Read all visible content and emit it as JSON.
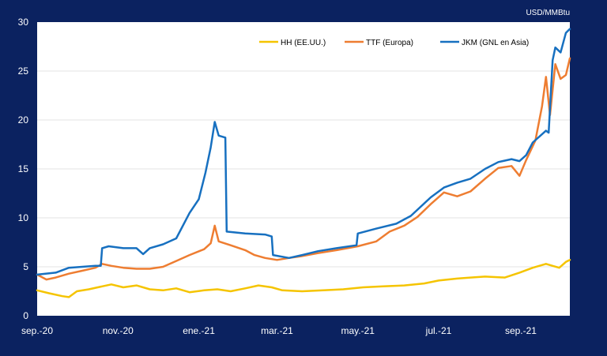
{
  "chart_data": {
    "type": "line",
    "unit_label": "USD/MMBtu",
    "xlabel": "",
    "ylabel": "",
    "ylim": [
      0,
      30
    ],
    "yticks": [
      0,
      5,
      10,
      15,
      20,
      25,
      30
    ],
    "xlim": [
      "2020-09-01",
      "2021-10-08"
    ],
    "xticks": [
      {
        "date": "2020-09-01",
        "label": "sep.-20"
      },
      {
        "date": "2020-11-01",
        "label": "nov.-20"
      },
      {
        "date": "2021-01-01",
        "label": "ene.-21"
      },
      {
        "date": "2021-03-01",
        "label": "mar.-21"
      },
      {
        "date": "2021-05-01",
        "label": "may.-21"
      },
      {
        "date": "2021-07-01",
        "label": "jul.-21"
      },
      {
        "date": "2021-09-01",
        "label": "sep.-21"
      }
    ],
    "grid": true,
    "legend_position": "top-right",
    "series": [
      {
        "name": "HH (EE.UU.)",
        "color": "#f5c400",
        "points": [
          [
            "2020-09-01",
            2.6
          ],
          [
            "2020-09-10",
            2.3
          ],
          [
            "2020-09-20",
            2.0
          ],
          [
            "2020-09-25",
            1.9
          ],
          [
            "2020-10-01",
            2.5
          ],
          [
            "2020-10-10",
            2.7
          ],
          [
            "2020-10-20",
            3.0
          ],
          [
            "2020-10-27",
            3.2
          ],
          [
            "2020-11-05",
            2.9
          ],
          [
            "2020-11-15",
            3.1
          ],
          [
            "2020-11-25",
            2.7
          ],
          [
            "2020-12-05",
            2.6
          ],
          [
            "2020-12-15",
            2.8
          ],
          [
            "2020-12-25",
            2.4
          ],
          [
            "2021-01-05",
            2.6
          ],
          [
            "2021-01-15",
            2.7
          ],
          [
            "2021-01-25",
            2.5
          ],
          [
            "2021-02-05",
            2.8
          ],
          [
            "2021-02-15",
            3.1
          ],
          [
            "2021-02-25",
            2.9
          ],
          [
            "2021-03-05",
            2.6
          ],
          [
            "2021-03-20",
            2.5
          ],
          [
            "2021-04-05",
            2.6
          ],
          [
            "2021-04-20",
            2.7
          ],
          [
            "2021-05-05",
            2.9
          ],
          [
            "2021-05-20",
            3.0
          ],
          [
            "2021-06-05",
            3.1
          ],
          [
            "2021-06-20",
            3.3
          ],
          [
            "2021-07-01",
            3.6
          ],
          [
            "2021-07-15",
            3.8
          ],
          [
            "2021-07-25",
            3.9
          ],
          [
            "2021-08-05",
            4.0
          ],
          [
            "2021-08-20",
            3.9
          ],
          [
            "2021-08-31",
            4.4
          ],
          [
            "2021-09-10",
            4.9
          ],
          [
            "2021-09-20",
            5.3
          ],
          [
            "2021-09-25",
            5.1
          ],
          [
            "2021-09-30",
            4.9
          ],
          [
            "2021-10-05",
            5.5
          ],
          [
            "2021-10-08",
            5.7
          ]
        ]
      },
      {
        "name": "TTF (Europa)",
        "color": "#ee7d31",
        "points": [
          [
            "2020-09-01",
            4.2
          ],
          [
            "2020-09-08",
            3.7
          ],
          [
            "2020-09-15",
            3.9
          ],
          [
            "2020-09-25",
            4.3
          ],
          [
            "2020-10-05",
            4.6
          ],
          [
            "2020-10-15",
            4.9
          ],
          [
            "2020-10-20",
            5.3
          ],
          [
            "2020-10-27",
            5.1
          ],
          [
            "2020-11-05",
            4.9
          ],
          [
            "2020-11-15",
            4.8
          ],
          [
            "2020-11-25",
            4.8
          ],
          [
            "2020-12-05",
            5.0
          ],
          [
            "2020-12-15",
            5.6
          ],
          [
            "2020-12-25",
            6.2
          ],
          [
            "2021-01-05",
            6.8
          ],
          [
            "2021-01-10",
            7.4
          ],
          [
            "2021-01-13",
            9.2
          ],
          [
            "2021-01-16",
            7.6
          ],
          [
            "2021-01-25",
            7.2
          ],
          [
            "2021-02-05",
            6.7
          ],
          [
            "2021-02-12",
            6.2
          ],
          [
            "2021-02-20",
            5.9
          ],
          [
            "2021-03-01",
            5.7
          ],
          [
            "2021-03-10",
            5.9
          ],
          [
            "2021-03-20",
            6.1
          ],
          [
            "2021-04-01",
            6.4
          ],
          [
            "2021-04-15",
            6.7
          ],
          [
            "2021-05-01",
            7.1
          ],
          [
            "2021-05-15",
            7.6
          ],
          [
            "2021-05-25",
            8.6
          ],
          [
            "2021-06-05",
            9.2
          ],
          [
            "2021-06-15",
            10.1
          ],
          [
            "2021-06-25",
            11.4
          ],
          [
            "2021-07-05",
            12.6
          ],
          [
            "2021-07-15",
            12.2
          ],
          [
            "2021-07-25",
            12.7
          ],
          [
            "2021-08-05",
            14.0
          ],
          [
            "2021-08-15",
            15.1
          ],
          [
            "2021-08-25",
            15.3
          ],
          [
            "2021-08-31",
            14.3
          ],
          [
            "2021-09-05",
            15.9
          ],
          [
            "2021-09-12",
            17.9
          ],
          [
            "2021-09-17",
            21.4
          ],
          [
            "2021-09-20",
            24.4
          ],
          [
            "2021-09-23",
            20.5
          ],
          [
            "2021-09-27",
            25.7
          ],
          [
            "2021-10-01",
            24.2
          ],
          [
            "2021-10-05",
            24.6
          ],
          [
            "2021-10-08",
            26.3
          ]
        ]
      },
      {
        "name": "JKM (GNL en Asia)",
        "color": "#1770c0",
        "points": [
          [
            "2020-09-01",
            4.2
          ],
          [
            "2020-09-15",
            4.4
          ],
          [
            "2020-09-25",
            4.9
          ],
          [
            "2020-10-05",
            5.0
          ],
          [
            "2020-10-15",
            5.1
          ],
          [
            "2020-10-19",
            5.1
          ],
          [
            "2020-10-20",
            6.9
          ],
          [
            "2020-10-25",
            7.1
          ],
          [
            "2020-11-05",
            6.9
          ],
          [
            "2020-11-15",
            6.9
          ],
          [
            "2020-11-20",
            6.3
          ],
          [
            "2020-11-25",
            6.9
          ],
          [
            "2020-12-05",
            7.3
          ],
          [
            "2020-12-15",
            7.9
          ],
          [
            "2020-12-25",
            10.5
          ],
          [
            "2021-01-01",
            11.9
          ],
          [
            "2021-01-06",
            14.6
          ],
          [
            "2021-01-10",
            17.2
          ],
          [
            "2021-01-13",
            19.8
          ],
          [
            "2021-01-16",
            18.4
          ],
          [
            "2021-01-21",
            18.2
          ],
          [
            "2021-01-22",
            8.6
          ],
          [
            "2021-02-05",
            8.4
          ],
          [
            "2021-02-20",
            8.3
          ],
          [
            "2021-02-25",
            8.1
          ],
          [
            "2021-02-26",
            6.2
          ],
          [
            "2021-03-10",
            5.9
          ],
          [
            "2021-03-20",
            6.2
          ],
          [
            "2021-04-01",
            6.6
          ],
          [
            "2021-04-15",
            6.9
          ],
          [
            "2021-04-30",
            7.2
          ],
          [
            "2021-05-01",
            8.4
          ],
          [
            "2021-05-15",
            8.9
          ],
          [
            "2021-05-30",
            9.4
          ],
          [
            "2021-06-10",
            10.2
          ],
          [
            "2021-06-25",
            12.1
          ],
          [
            "2021-07-05",
            13.1
          ],
          [
            "2021-07-15",
            13.6
          ],
          [
            "2021-07-25",
            14.0
          ],
          [
            "2021-08-05",
            15.0
          ],
          [
            "2021-08-15",
            15.7
          ],
          [
            "2021-08-25",
            16.0
          ],
          [
            "2021-08-31",
            15.8
          ],
          [
            "2021-09-05",
            16.4
          ],
          [
            "2021-09-10",
            17.7
          ],
          [
            "2021-09-20",
            18.9
          ],
          [
            "2021-09-22",
            18.7
          ],
          [
            "2021-09-25",
            26.1
          ],
          [
            "2021-09-27",
            27.4
          ],
          [
            "2021-10-01",
            26.9
          ],
          [
            "2021-10-05",
            28.9
          ],
          [
            "2021-10-08",
            29.3
          ]
        ]
      }
    ]
  }
}
